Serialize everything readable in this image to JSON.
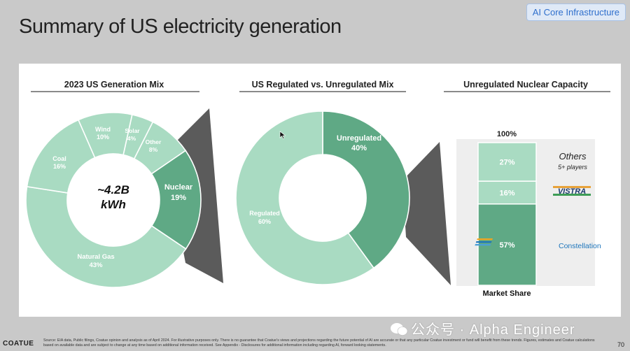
{
  "header": {
    "title": "Summary of US electricity generation",
    "badge": "AI Core Infrastructure"
  },
  "colors": {
    "light": "#a9dbc2",
    "dark": "#5fa985",
    "connector": "#5b5b5b",
    "rule": "#444444"
  },
  "chart_data": [
    {
      "type": "pie",
      "title": "2023 US Generation Mix",
      "center_label": [
        "~4.2B",
        "kWh"
      ],
      "slices": [
        {
          "label": "Natural Gas",
          "value": 43,
          "display": "43%"
        },
        {
          "label": "Coal",
          "value": 16,
          "display": "16%"
        },
        {
          "label": "Wind",
          "value": 10,
          "display": "10%"
        },
        {
          "label": "Solar",
          "value": 4,
          "display": "4%"
        },
        {
          "label": "Other",
          "value": 8,
          "display": "8%"
        },
        {
          "label": "Nuclear",
          "value": 19,
          "display": "19%"
        }
      ]
    },
    {
      "type": "pie",
      "title": "US Regulated vs. Unregulated Mix",
      "slices": [
        {
          "label": "Unregulated",
          "value": 40,
          "display": "40%"
        },
        {
          "label": "Regulated",
          "value": 60,
          "display": "60%"
        }
      ]
    },
    {
      "type": "bar",
      "title": "Unregulated Nuclear Capacity",
      "xlabel": "Market Share",
      "total_label": "100%",
      "segments": [
        {
          "label": "Constellation",
          "value": 57,
          "display": "57%"
        },
        {
          "label": "VISTRA",
          "value": 16,
          "display": "16%"
        },
        {
          "label": "Others",
          "sublabel": "5+ players",
          "value": 27,
          "display": "27%"
        }
      ]
    }
  ],
  "footer": {
    "logo": "COATUE",
    "source": "Source: EIA data, Public filings, Coatue opinion and analysis as of April 2024. For illustrative purposes only. There is no guarantee that Coatue's views and projections regarding the future potential of AI are accurate or that any particular Coatue investment or fund will benefit from these trends. Figures, estimates and Coatue calculations based on available data and are subject to change at any time based on additional information received. See Appendix - Disclosures for additional information including regarding AI, forward looking statements.",
    "page": "70",
    "watermark": "公众号 · Alpha Engineer"
  }
}
